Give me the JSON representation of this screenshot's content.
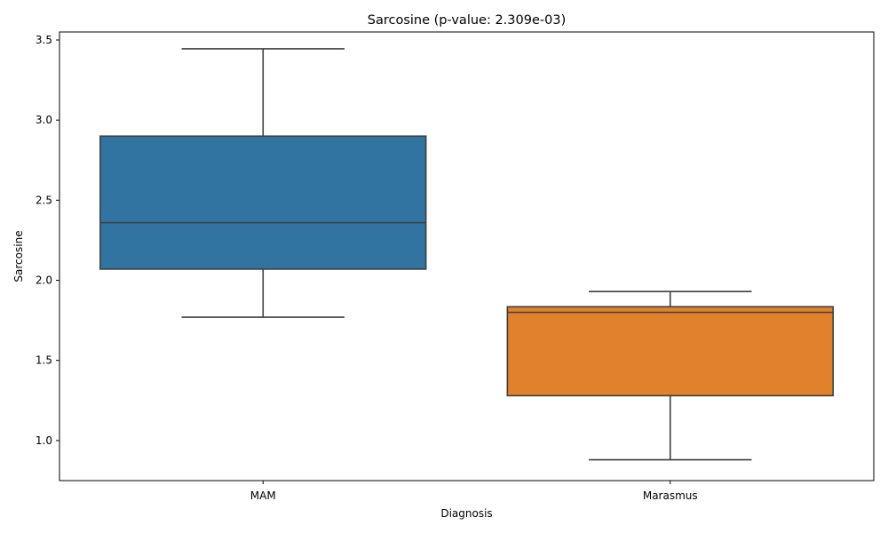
{
  "chart_data": {
    "type": "box",
    "title": "Sarcosine (p-value: 2.309e-03)",
    "xlabel": "Diagnosis",
    "ylabel": "Sarcosine",
    "ylim": [
      0.75,
      3.55
    ],
    "yticks": [
      1.0,
      1.5,
      2.0,
      2.5,
      3.0,
      3.5
    ],
    "ytick_labels": [
      "1.0",
      "1.5",
      "2.0",
      "2.5",
      "3.0",
      "3.5"
    ],
    "grid": false,
    "categories": [
      "MAM",
      "Marasmus"
    ],
    "boxes": [
      {
        "category": "MAM",
        "whisker_low": 1.77,
        "q1": 2.07,
        "median": 2.36,
        "q3": 2.9,
        "whisker_high": 3.445,
        "color": "#3274a1"
      },
      {
        "category": "Marasmus",
        "whisker_low": 0.88,
        "q1": 1.28,
        "median": 1.8,
        "q3": 1.835,
        "whisker_high": 1.93,
        "color": "#e1812c"
      }
    ],
    "line_color": "#3f3f3f"
  }
}
